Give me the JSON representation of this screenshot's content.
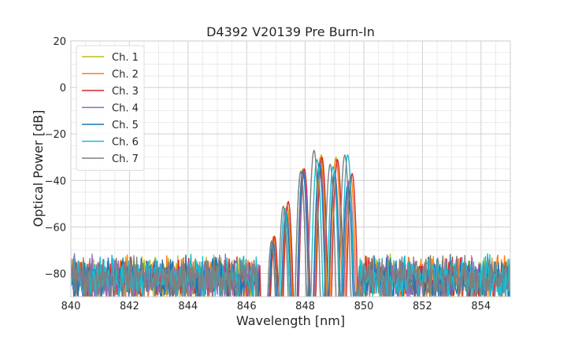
{
  "chart_data": {
    "type": "line",
    "title": "D4392 V20139 Pre Burn-In",
    "xlabel": "Wavelength [nm]",
    "ylabel": "Optical Power [dB]",
    "xlim": [
      840,
      855
    ],
    "ylim": [
      -90,
      20
    ],
    "xticks": [
      840,
      842,
      844,
      846,
      848,
      850,
      852,
      854
    ],
    "yticks": [
      -80,
      -60,
      -40,
      -20,
      0,
      20
    ],
    "grid": true,
    "legend_position": "top-left",
    "noise_floor": {
      "range": [
        -90,
        -71
      ]
    },
    "series": [
      {
        "name": "Ch. 1",
        "color": "#bcbd22",
        "peaks": [
          {
            "x": 846.95,
            "y": -65
          },
          {
            "x": 847.4,
            "y": -52
          },
          {
            "x": 847.95,
            "y": -35
          },
          {
            "x": 848.55,
            "y": -29
          },
          {
            "x": 849.05,
            "y": -30
          },
          {
            "x": 849.5,
            "y": -40
          }
        ]
      },
      {
        "name": "Ch. 2",
        "color": "#ff7f0e",
        "peaks": [
          {
            "x": 846.92,
            "y": -64
          },
          {
            "x": 847.38,
            "y": -51
          },
          {
            "x": 847.92,
            "y": -35
          },
          {
            "x": 848.52,
            "y": -30
          },
          {
            "x": 849.05,
            "y": -31
          },
          {
            "x": 849.55,
            "y": -38
          }
        ]
      },
      {
        "name": "Ch. 3",
        "color": "#d62728",
        "peaks": [
          {
            "x": 846.95,
            "y": -64
          },
          {
            "x": 847.42,
            "y": -49
          },
          {
            "x": 847.97,
            "y": -35
          },
          {
            "x": 848.57,
            "y": -30
          },
          {
            "x": 849.1,
            "y": -31
          },
          {
            "x": 849.6,
            "y": -37
          }
        ]
      },
      {
        "name": "Ch. 4",
        "color": "#9467bd",
        "peaks": [
          {
            "x": 846.9,
            "y": -66
          },
          {
            "x": 847.35,
            "y": -53
          },
          {
            "x": 847.95,
            "y": -36
          },
          {
            "x": 848.5,
            "y": -32
          },
          {
            "x": 849.0,
            "y": -36
          },
          {
            "x": 849.5,
            "y": -40
          }
        ]
      },
      {
        "name": "Ch. 5",
        "color": "#1f77b4",
        "peaks": [
          {
            "x": 846.9,
            "y": -67
          },
          {
            "x": 847.35,
            "y": -54
          },
          {
            "x": 847.92,
            "y": -36
          },
          {
            "x": 848.48,
            "y": -33
          },
          {
            "x": 849.0,
            "y": -38
          },
          {
            "x": 849.45,
            "y": -42
          }
        ]
      },
      {
        "name": "Ch. 6",
        "color": "#17becf",
        "peaks": [
          {
            "x": 846.85,
            "y": -67
          },
          {
            "x": 847.3,
            "y": -52
          },
          {
            "x": 847.85,
            "y": -36
          },
          {
            "x": 848.4,
            "y": -31
          },
          {
            "x": 848.95,
            "y": -34
          },
          {
            "x": 849.45,
            "y": -29
          }
        ]
      },
      {
        "name": "Ch. 7",
        "color": "#7f7f7f",
        "peaks": [
          {
            "x": 846.85,
            "y": -66
          },
          {
            "x": 847.25,
            "y": -51
          },
          {
            "x": 847.85,
            "y": -36
          },
          {
            "x": 848.3,
            "y": -27
          },
          {
            "x": 848.85,
            "y": -33
          },
          {
            "x": 849.35,
            "y": -29
          }
        ]
      }
    ]
  }
}
